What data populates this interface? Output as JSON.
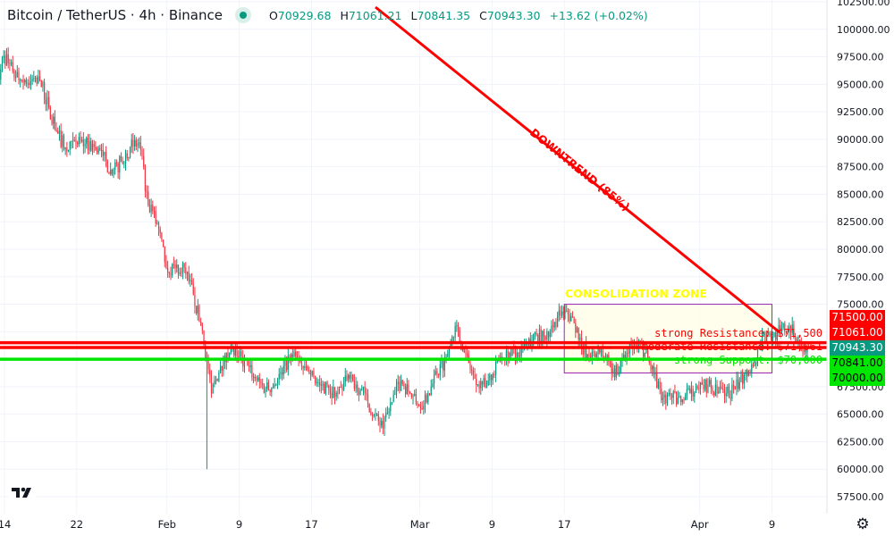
{
  "header": {
    "title": "Bitcoin / TetherUS · 4h · Binance",
    "open_label": "O",
    "open": "70929.68",
    "high_label": "H",
    "high": "71061.21",
    "low_label": "L",
    "low": "70841.35",
    "close_label": "C",
    "close": "70943.30",
    "change": "+13.62 (+0.02%)"
  },
  "colors": {
    "up": "#089981",
    "down": "#f23645",
    "resistance": "#ff0000",
    "support": "#00e600",
    "zone_border": "#9c27b0",
    "zone_fill": "#fffde7",
    "zone_label": "#ffff00"
  },
  "price_badges": [
    {
      "label": "71500.00",
      "bg": "#ff0000",
      "fg": "#ffffff"
    },
    {
      "label": "71061.00",
      "bg": "#ff0000",
      "fg": "#ffffff"
    },
    {
      "label": "70943.30",
      "bg": "#089981",
      "fg": "#ffffff"
    },
    {
      "label": "70841.00",
      "bg": "#00e600",
      "fg": "#000000"
    },
    {
      "label": "70000.00",
      "bg": "#00e600",
      "fg": "#000000"
    }
  ],
  "icons": {
    "settings": "gear-icon",
    "logo": "tradingview-logo",
    "status": "market-open-dot"
  },
  "chart_data": {
    "type": "candlestick",
    "interval": "4h",
    "ylim": [
      56000,
      103500
    ],
    "y_ticks": [
      "102500.00",
      "100000.00",
      "97500.00",
      "95000.00",
      "92500.00",
      "90000.00",
      "87500.00",
      "85000.00",
      "82500.00",
      "80000.00",
      "77500.00",
      "75000.00",
      "67500.00",
      "65000.00",
      "62500.00",
      "60000.00",
      "57500.00"
    ],
    "y_tick_values": [
      102500,
      100000,
      97500,
      95000,
      92500,
      90000,
      87500,
      85000,
      82500,
      80000,
      77500,
      75000,
      67500,
      65000,
      62500,
      60000,
      57500
    ],
    "x_ticks": [
      {
        "label": "14",
        "date": "Jan 14"
      },
      {
        "label": "22",
        "date": "Jan 22"
      },
      {
        "label": "Feb",
        "date": "Feb 1"
      },
      {
        "label": "9",
        "date": "Feb 9"
      },
      {
        "label": "17",
        "date": "Feb 17"
      },
      {
        "label": "Mar",
        "date": "Mar 1"
      },
      {
        "label": "9",
        "date": "Mar 9"
      },
      {
        "label": "17",
        "date": "Mar 17"
      },
      {
        "label": "Apr",
        "date": "Apr 1"
      },
      {
        "label": "9",
        "date": "Apr 9"
      }
    ],
    "grid": true,
    "daily_closes": [
      [
        "Jan 13",
        93700
      ],
      [
        "Jan 14",
        97600
      ],
      [
        "Jan 15",
        96200
      ],
      [
        "Jan 16",
        95400
      ],
      [
        "Jan 17",
        95300
      ],
      [
        "Jan 18",
        95300
      ],
      [
        "Jan 19",
        92900
      ],
      [
        "Jan 20",
        90500
      ],
      [
        "Jan 21",
        88900
      ],
      [
        "Jan 22",
        89700
      ],
      [
        "Jan 23",
        89600
      ],
      [
        "Jan 24",
        89300
      ],
      [
        "Jan 25",
        88500
      ],
      [
        "Jan 26",
        86800
      ],
      [
        "Jan 27",
        88000
      ],
      [
        "Jan 28",
        89300
      ],
      [
        "Jan 29",
        89700
      ],
      [
        "Jan 30",
        84000
      ],
      [
        "Jan 31",
        82400
      ],
      [
        "Feb 1",
        78300
      ],
      [
        "Feb 2",
        78300
      ],
      [
        "Feb 3",
        78300
      ],
      [
        "Feb 4",
        75900
      ],
      [
        "Feb 5",
        72600
      ],
      [
        "Feb 6",
        66900
      ],
      [
        "Feb 7",
        69400
      ],
      [
        "Feb 8",
        70600
      ],
      [
        "Feb 9",
        70200
      ],
      [
        "Feb 10",
        69400
      ],
      [
        "Feb 11",
        68100
      ],
      [
        "Feb 12",
        67300
      ],
      [
        "Feb 13",
        67700
      ],
      [
        "Feb 14",
        69400
      ],
      [
        "Feb 15",
        70200
      ],
      [
        "Feb 16",
        69400
      ],
      [
        "Feb 17",
        68600
      ],
      [
        "Feb 18",
        67700
      ],
      [
        "Feb 19",
        67300
      ],
      [
        "Feb 20",
        66900
      ],
      [
        "Feb 21",
        68100
      ],
      [
        "Feb 22",
        67700
      ],
      [
        "Feb 23",
        66900
      ],
      [
        "Feb 24",
        64900
      ],
      [
        "Feb 25",
        63700
      ],
      [
        "Feb 26",
        66100
      ],
      [
        "Feb 27",
        68100
      ],
      [
        "Feb 28",
        66900
      ],
      [
        "Mar 1",
        65700
      ],
      [
        "Mar 2",
        66900
      ],
      [
        "Mar 3",
        68600
      ],
      [
        "Mar 4",
        70200
      ],
      [
        "Mar 5",
        73000
      ],
      [
        "Mar 6",
        70600
      ],
      [
        "Mar 7",
        68600
      ],
      [
        "Mar 8",
        67700
      ],
      [
        "Mar 9",
        68100
      ],
      [
        "Mar 10",
        70200
      ],
      [
        "Mar 11",
        70600
      ],
      [
        "Mar 12",
        70200
      ],
      [
        "Mar 13",
        71400
      ],
      [
        "Mar 14",
        72200
      ],
      [
        "Mar 15",
        71800
      ],
      [
        "Mar 16",
        73400
      ],
      [
        "Mar 17",
        74200
      ],
      [
        "Mar 18",
        73800
      ],
      [
        "Mar 19",
        71000
      ],
      [
        "Mar 20",
        70200
      ],
      [
        "Mar 21",
        70600
      ],
      [
        "Mar 22",
        69800
      ],
      [
        "Mar 23",
        68600
      ],
      [
        "Mar 24",
        70600
      ],
      [
        "Mar 25",
        71400
      ],
      [
        "Mar 26",
        70600
      ],
      [
        "Mar 27",
        68600
      ],
      [
        "Mar 28",
        66500
      ],
      [
        "Mar 29",
        66500
      ],
      [
        "Mar 30",
        66100
      ],
      [
        "Mar 31",
        66900
      ],
      [
        "Apr 1",
        67300
      ],
      [
        "Apr 2",
        67700
      ],
      [
        "Apr 3",
        66900
      ],
      [
        "Apr 4",
        66900
      ],
      [
        "Apr 5",
        67300
      ],
      [
        "Apr 6",
        68600
      ],
      [
        "Apr 7",
        69400
      ],
      [
        "Apr 8",
        72200
      ],
      [
        "Apr 9",
        71800
      ],
      [
        "Apr 10",
        72600
      ],
      [
        "Apr 11",
        73000
      ],
      [
        "Apr 12",
        71800
      ],
      [
        "Apr 13",
        70943.3
      ]
    ],
    "notable_low": {
      "date": "Feb 6",
      "price": 60000
    },
    "horizontal_levels": [
      {
        "price": 71500,
        "label": "strong Resistance: $71,500",
        "color": "#ff0000"
      },
      {
        "price": 71061,
        "label": "moderate Resistance: $71,061",
        "color": "#ff0000"
      },
      {
        "price": 70000,
        "label": "strong Support: $70,000",
        "color": "#00e600"
      }
    ],
    "trendline": {
      "label": "DOWNTREND (85%)",
      "color": "#ff0000"
    },
    "zone": {
      "label": "CONSOLIDATION ZONE",
      "from": "Mar 17",
      "to": "Apr 9",
      "top": 75000,
      "bottom": 68750
    }
  }
}
